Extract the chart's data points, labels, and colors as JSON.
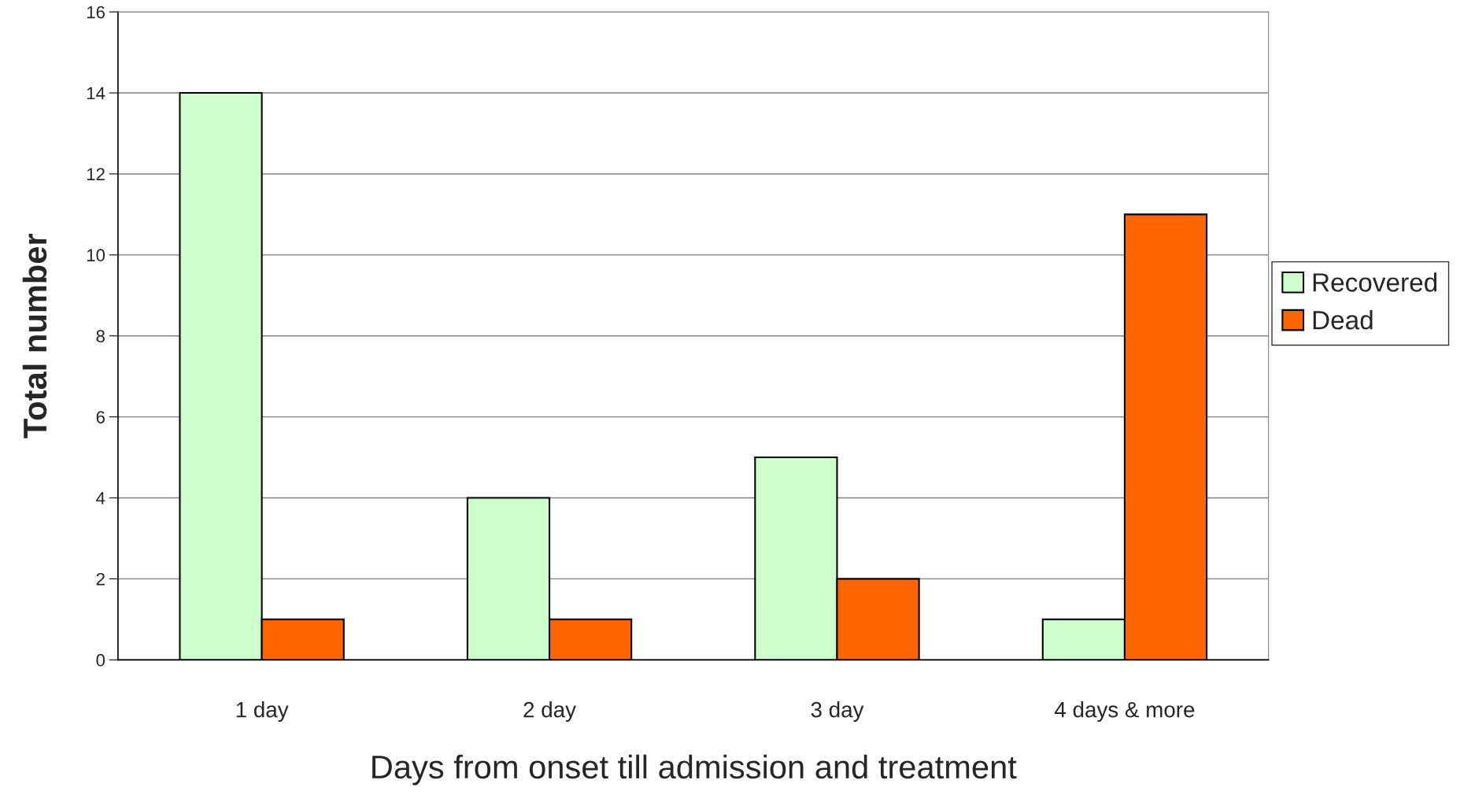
{
  "chart_data": {
    "type": "bar",
    "xlabel": "Days from onset till admission and treatment",
    "ylabel": "Total number",
    "categories": [
      "1 day",
      "2 day",
      "3 day",
      "4 days & more"
    ],
    "series": [
      {
        "name": "Recovered",
        "color": "#ccffcc",
        "values": [
          14,
          4,
          5,
          1
        ]
      },
      {
        "name": "Dead",
        "color": "#ff6600",
        "values": [
          1,
          1,
          2,
          11
        ]
      }
    ],
    "ylim": [
      0,
      16
    ],
    "yticks": [
      0,
      2,
      4,
      6,
      8,
      10,
      12,
      14,
      16
    ],
    "grid": "y",
    "legend": "right"
  }
}
